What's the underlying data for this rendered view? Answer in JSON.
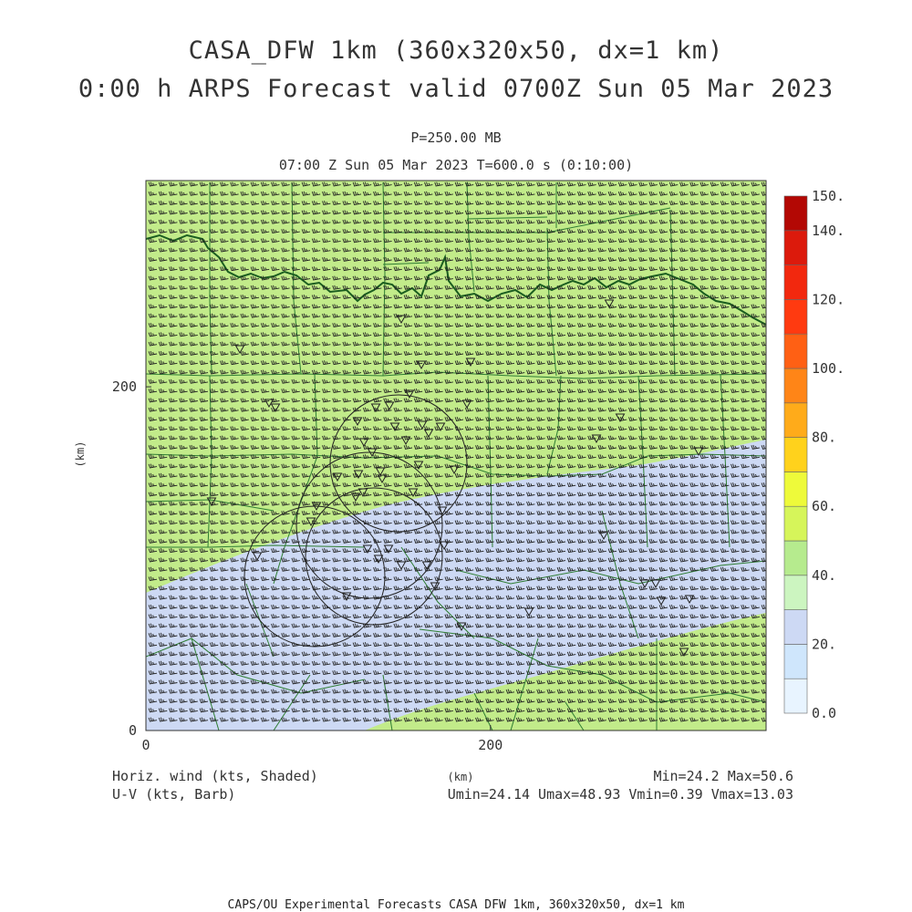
{
  "title": {
    "line1": "CASA_DFW 1km (360x320x50, dx=1 km)",
    "line2": "0:00 h ARPS Forecast valid 0700Z Sun 05 Mar 2023"
  },
  "subtitle": {
    "level": "P=250.00 MB",
    "valid": "07:00 Z Sun 05 Mar 2023    T=600.0 s (0:10:00)"
  },
  "axes": {
    "x_label": "(km)",
    "y_label": "(km)",
    "x_ticks": [
      {
        "value": 0,
        "label": "0"
      },
      {
        "value": 200,
        "label": "200"
      }
    ],
    "y_ticks": [
      {
        "value": 0,
        "label": "0"
      },
      {
        "value": 200,
        "label": "200"
      }
    ],
    "x_range": [
      0,
      360
    ],
    "y_range": [
      0,
      320
    ]
  },
  "colorbar": {
    "levels": [
      0,
      10,
      20,
      30,
      40,
      50,
      60,
      70,
      80,
      90,
      100,
      110,
      120,
      130,
      140,
      150
    ],
    "labels": [
      "0.0",
      "20.",
      "40.",
      "60.",
      "80.",
      "100.",
      "120.",
      "140.",
      "150."
    ],
    "colors": [
      "#e8f4ff",
      "#cfe6fc",
      "#cdd9f4",
      "#ccf5c0",
      "#b6eb8e",
      "#d6f55a",
      "#eefa3a",
      "#ffd21c",
      "#ffab1a",
      "#ff8517",
      "#ff6014",
      "#ff3a10",
      "#f2280e",
      "#dc1a0c",
      "#b30804"
    ]
  },
  "legend": {
    "shaded": "Horiz. wind (kts, Shaded)",
    "barb": "U-V (kts, Barb)",
    "minmax": "Min=24.2 Max=50.6",
    "uv_minmax": "Umin=24.14 Umax=48.93 Vmin=0.39 Vmax=13.03"
  },
  "footer": "CAPS/OU Experimental Forecasts  CASA DFW 1km, 360x320x50, dx=1 km",
  "map_colors": {
    "green_shade": "#c2eb8a",
    "blue_shade": "#cdd9f4",
    "county_lines": "#2e7d32",
    "state_border": "#1b5e20",
    "barbs": "#222222"
  }
}
